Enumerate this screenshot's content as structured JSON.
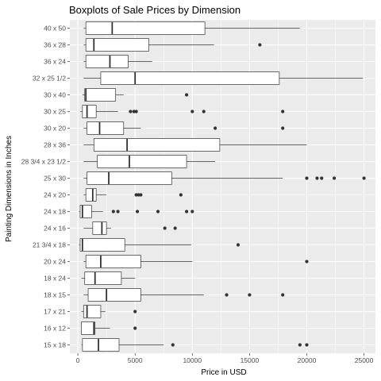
{
  "chart_data": {
    "type": "boxplot",
    "title": "Boxplots of Sale Prices by Dimension",
    "xlabel": "Price in USD",
    "ylabel": "Painting Dimensions in Inches",
    "xlim": [
      -700,
      26000
    ],
    "x_ticks": [
      0,
      5000,
      10000,
      15000,
      20000,
      25000
    ],
    "x_tick_labels": [
      "0",
      "5000",
      "10000",
      "15000",
      "20000",
      "25000"
    ],
    "grid": true,
    "background": "#ebebeb",
    "categories": [
      {
        "label": "40 x 50",
        "whisker_low": 500,
        "q1": 700,
        "median": 3000,
        "q3": 11100,
        "whisker_high": 19400,
        "outliers": []
      },
      {
        "label": "36 x 28",
        "whisker_low": 500,
        "q1": 700,
        "median": 1400,
        "q3": 6200,
        "whisker_high": 11900,
        "outliers": [
          15900
        ]
      },
      {
        "label": "36 x 24",
        "whisker_low": 500,
        "q1": 700,
        "median": 2800,
        "q3": 4400,
        "whisker_high": 6500,
        "outliers": []
      },
      {
        "label": "32 x 25 1/2",
        "whisker_low": 500,
        "q1": 2000,
        "median": 5000,
        "q3": 17600,
        "whisker_high": 24900,
        "outliers": []
      },
      {
        "label": "30 x 40",
        "whisker_low": 400,
        "q1": 600,
        "median": 700,
        "q3": 3300,
        "whisker_high": 4000,
        "outliers": [
          9500
        ]
      },
      {
        "label": "30 x 25",
        "whisker_low": 200,
        "q1": 400,
        "median": 800,
        "q3": 1600,
        "whisker_high": 3500,
        "outliers": [
          4600,
          4900,
          5100,
          10000,
          11000,
          17900
        ]
      },
      {
        "label": "30 x 20",
        "whisker_low": 500,
        "q1": 800,
        "median": 1900,
        "q3": 4000,
        "whisker_high": 5500,
        "outliers": [
          12000,
          17900
        ]
      },
      {
        "label": "28 x 36",
        "whisker_low": 500,
        "q1": 1400,
        "median": 4300,
        "q3": 12400,
        "whisker_high": 20000,
        "outliers": []
      },
      {
        "label": "28 3/4 x 23 1/2",
        "whisker_low": 500,
        "q1": 1700,
        "median": 4500,
        "q3": 9500,
        "whisker_high": 12000,
        "outliers": []
      },
      {
        "label": "25 x 30",
        "whisker_low": 500,
        "q1": 800,
        "median": 2700,
        "q3": 8200,
        "whisker_high": 17900,
        "outliers": [
          20000,
          20900,
          21300,
          22400,
          25000
        ]
      },
      {
        "label": "24 x 20",
        "whisker_low": 500,
        "q1": 700,
        "median": 1300,
        "q3": 1600,
        "whisker_high": 2500,
        "outliers": [
          5100,
          5300,
          5500,
          9000
        ]
      },
      {
        "label": "24 x 18",
        "whisker_low": 100,
        "q1": 200,
        "median": 400,
        "q3": 1200,
        "whisker_high": 2200,
        "outliers": [
          3100,
          3500,
          5200,
          7000,
          9500,
          10000
        ]
      },
      {
        "label": "24 x 16",
        "whisker_low": 500,
        "q1": 1300,
        "median": 2100,
        "q3": 2500,
        "whisker_high": 2900,
        "outliers": [
          7600,
          8500
        ]
      },
      {
        "label": "21 3/4 x 18",
        "whisker_low": 100,
        "q1": 200,
        "median": 400,
        "q3": 4100,
        "whisker_high": 9900,
        "outliers": [
          14000
        ]
      },
      {
        "label": "20 x 24",
        "whisker_low": 500,
        "q1": 700,
        "median": 2000,
        "q3": 5500,
        "whisker_high": 10000,
        "outliers": [
          20000
        ]
      },
      {
        "label": "18 x 24",
        "whisker_low": 300,
        "q1": 600,
        "median": 1500,
        "q3": 3800,
        "whisker_high": 5000,
        "outliers": []
      },
      {
        "label": "18 x 15",
        "whisker_low": 500,
        "q1": 900,
        "median": 2500,
        "q3": 5500,
        "whisker_high": 11000,
        "outliers": [
          13000,
          15000,
          17900
        ]
      },
      {
        "label": "17 x 21",
        "whisker_low": 300,
        "q1": 500,
        "median": 800,
        "q3": 2000,
        "whisker_high": 2400,
        "outliers": [
          5000
        ]
      },
      {
        "label": "16 x 12",
        "whisker_low": 300,
        "q1": 300,
        "median": 1400,
        "q3": 1500,
        "whisker_high": 2800,
        "outliers": [
          5000
        ]
      },
      {
        "label": "15 x 18",
        "whisker_low": 300,
        "q1": 400,
        "median": 1800,
        "q3": 3600,
        "whisker_high": 7500,
        "outliers": [
          8300,
          19400,
          20000
        ]
      }
    ]
  }
}
